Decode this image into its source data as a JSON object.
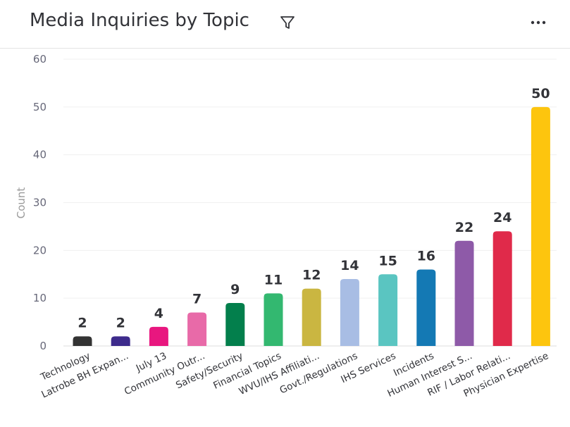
{
  "header": {
    "title": "Media Inquiries by Topic",
    "filter_icon": "filter-icon",
    "menu_icon": "more-horizontal-icon"
  },
  "chart_data": {
    "type": "bar",
    "title": "Media Inquiries by Topic",
    "xlabel": "",
    "ylabel": "Count",
    "ylim": [
      0,
      60
    ],
    "yticks": [
      0,
      10,
      20,
      30,
      40,
      50,
      60
    ],
    "grid": true,
    "legend": "none",
    "categories": [
      "Technology",
      "Latrobe BH Expan...",
      "July 13",
      "Community Outr...",
      "Safety/Security",
      "Financial Topics",
      "WVU/IHS Affiliati...",
      "Govt./Regulations",
      "IHS Services",
      "Incidents",
      "Human Interest S...",
      "RIF / Labor Relati...",
      "Physician Expertise"
    ],
    "values": [
      2,
      2,
      4,
      7,
      9,
      11,
      12,
      14,
      15,
      16,
      22,
      24,
      50
    ],
    "colors": [
      "#333333",
      "#3d2b8c",
      "#e8177f",
      "#e86aa8",
      "#037f4c",
      "#33b870",
      "#cab641",
      "#a8bde4",
      "#5ac5c1",
      "#1479b4",
      "#8e5aa8",
      "#e02a4a",
      "#fdc50e"
    ]
  }
}
